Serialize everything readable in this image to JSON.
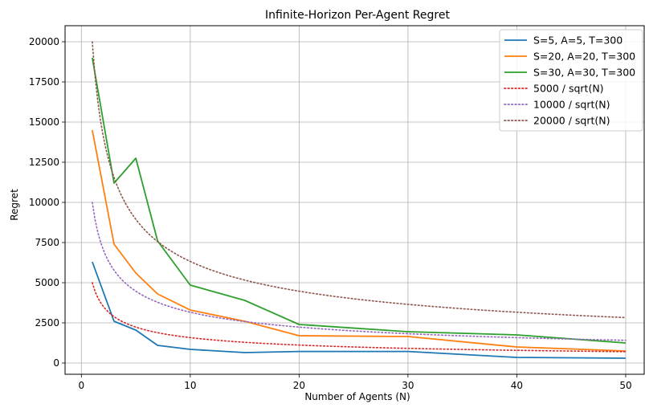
{
  "chart_data": {
    "type": "line",
    "title": "Infinite-Horizon Per-Agent Regret",
    "xlabel": "Number of Agents (N)",
    "ylabel": "Regret",
    "xlim": [
      -1.5,
      51.7
    ],
    "ylim": [
      -700,
      21000
    ],
    "xticks": [
      0,
      10,
      20,
      30,
      40,
      50
    ],
    "yticks": [
      0,
      2500,
      5000,
      7500,
      10000,
      12500,
      15000,
      17500,
      20000
    ],
    "grid": true,
    "legend_position": "top-right",
    "series": [
      {
        "name": "S=5, A=5, T=300",
        "color": "#1f77b4",
        "style": "solid",
        "x": [
          1,
          3,
          5,
          7,
          10,
          15,
          20,
          30,
          40,
          50
        ],
        "y": [
          6300,
          2600,
          2050,
          1100,
          850,
          650,
          720,
          720,
          350,
          300
        ]
      },
      {
        "name": "S=20, A=20, T=300",
        "color": "#ff7f0e",
        "style": "solid",
        "x": [
          1,
          3,
          5,
          7,
          10,
          15,
          20,
          30,
          40,
          50
        ],
        "y": [
          14500,
          7400,
          5600,
          4300,
          3300,
          2600,
          1700,
          1650,
          1000,
          750
        ]
      },
      {
        "name": "S=30, A=30, T=300",
        "color": "#2ca02c",
        "style": "solid",
        "x": [
          1,
          3,
          5,
          7,
          10,
          15,
          20,
          30,
          40,
          50
        ],
        "y": [
          19000,
          11200,
          12750,
          7600,
          4850,
          3900,
          2400,
          1950,
          1750,
          1250
        ]
      },
      {
        "name": "5000 / sqrt(N)",
        "color": "#d62728",
        "style": "dotted",
        "func_coef": 5000,
        "x": [
          1,
          2,
          3,
          4,
          5,
          6,
          7,
          8,
          9,
          10,
          12,
          15,
          18,
          20,
          25,
          30,
          35,
          40,
          45,
          50
        ],
        "y": [
          5000,
          3536,
          2887,
          2500,
          2236,
          2041,
          1890,
          1768,
          1667,
          1581,
          1443,
          1291,
          1179,
          1118,
          1000,
          913,
          845,
          791,
          745,
          707
        ]
      },
      {
        "name": "10000 / sqrt(N)",
        "color": "#9467bd",
        "style": "dotted",
        "func_coef": 10000,
        "x": [
          1,
          2,
          3,
          4,
          5,
          6,
          7,
          8,
          9,
          10,
          12,
          15,
          18,
          20,
          25,
          30,
          35,
          40,
          45,
          50
        ],
        "y": [
          10000,
          7071,
          5774,
          5000,
          4472,
          4082,
          3780,
          3536,
          3333,
          3162,
          2887,
          2582,
          2357,
          2236,
          2000,
          1826,
          1690,
          1581,
          1491,
          1414
        ]
      },
      {
        "name": "20000 / sqrt(N)",
        "color": "#8c564b",
        "style": "dotted",
        "func_coef": 20000,
        "x": [
          1,
          2,
          3,
          4,
          5,
          6,
          7,
          8,
          9,
          10,
          12,
          15,
          18,
          20,
          25,
          30,
          35,
          40,
          45,
          50
        ],
        "y": [
          20000,
          14142,
          11547,
          10000,
          8944,
          8165,
          7559,
          7071,
          6667,
          6325,
          5774,
          5164,
          4714,
          4472,
          4000,
          3651,
          3381,
          3162,
          2981,
          2828
        ]
      }
    ]
  }
}
